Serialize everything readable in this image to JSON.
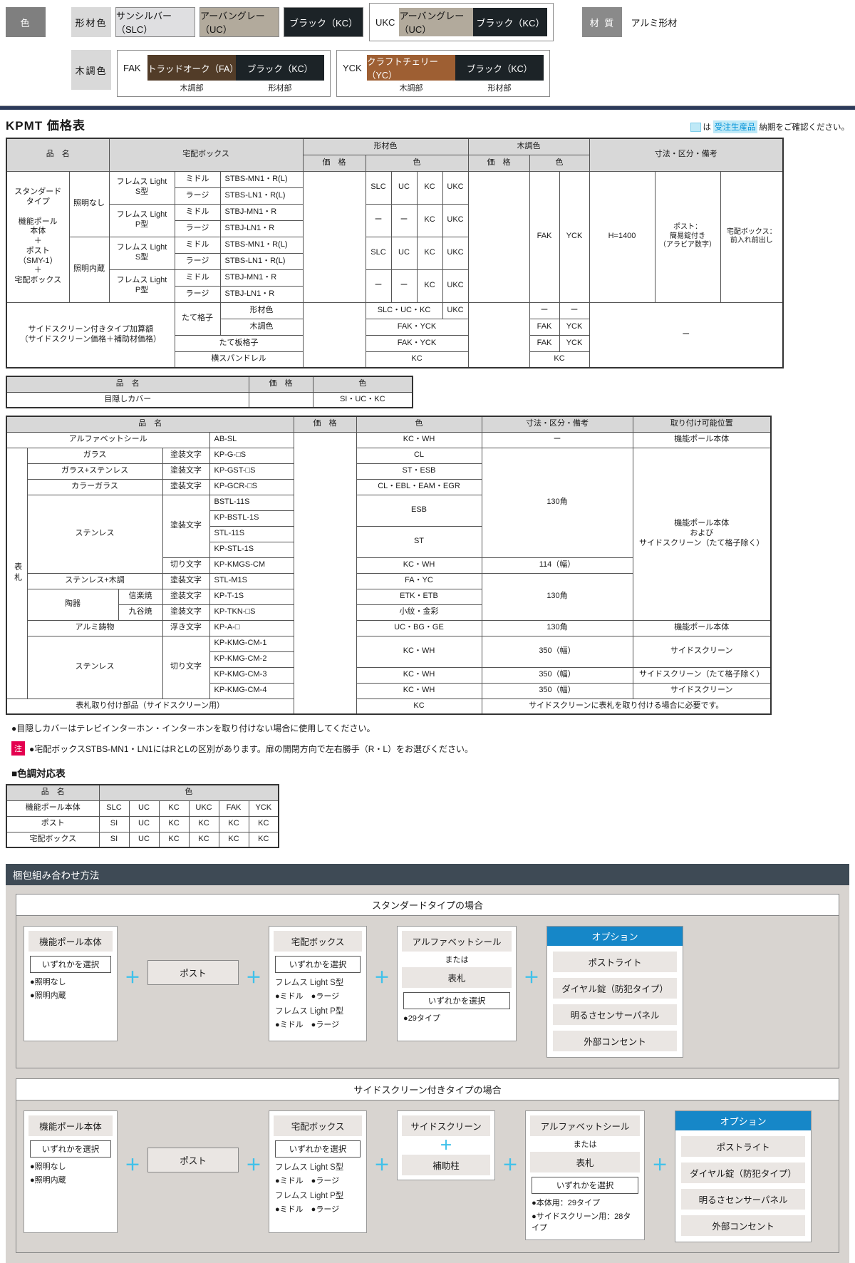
{
  "page": {
    "title": "KPMT 価格表"
  },
  "legend": {
    "prefix": "は",
    "badge": "受注生産品",
    "suffix": "納期をご確認ください。"
  },
  "colors": {
    "silver": "#dfdfe1",
    "urban": "#b2aa9c",
    "black": "#1c2327",
    "oak": "#523c28",
    "cherry": "#9e5f33",
    "accent_blue": "#1687c8",
    "plus_cyan": "#3fc1ea",
    "legend_bg": "#bfe9f7",
    "legend_text": "#0092d8",
    "note_badge": "#e4004f",
    "navy_rule": "#2c3a59",
    "header_gray": "#d8d8d8",
    "panel_bg": "#d8d4d0",
    "bar_bg": "#eae6e3"
  },
  "palette": {
    "colorLabel": "色",
    "profileLabel": "形材色",
    "swatches": [
      {
        "name": "サンシルバー（SLC）"
      },
      {
        "name": "アーバングレー（UC）"
      },
      {
        "name": "ブラック（KC）"
      }
    ],
    "ukc": {
      "code": "UKC",
      "left": "アーバングレー（UC）",
      "right": "ブラック（KC）"
    },
    "materialLabel": "材 質",
    "material": "アルミ形材",
    "woodLabel": "木調色",
    "fak": {
      "code": "FAK",
      "left": "トラッドオーク（FA）",
      "right": "ブラック（KC）",
      "leftCap": "木調部",
      "rightCap": "形材部"
    },
    "yck": {
      "code": "YCK",
      "left": "クラフトチェリー（YC）",
      "right": "ブラック（KC）",
      "leftCap": "木調部",
      "rightCap": "形材部"
    }
  },
  "tables": {
    "main": {
      "cols": [
        88,
        56,
        92,
        64,
        116,
        88,
        36,
        36,
        36,
        36,
        86,
        42,
        42,
        92,
        92,
        88
      ],
      "rows": [
        [
          {
            "t": "品　名",
            "cs": 2,
            "rs": 2,
            "c": "h"
          },
          {
            "t": "宅配ボックス",
            "cs": 3,
            "rs": 2,
            "c": "h"
          },
          {
            "t": "形材色",
            "cs": 5,
            "c": "h"
          },
          {
            "t": "木調色",
            "cs": 3,
            "c": "h"
          },
          {
            "t": "寸法・区分・備考",
            "cs": 3,
            "rs": 2,
            "c": "h"
          }
        ],
        [
          {
            "t": "価　格",
            "c": "h"
          },
          {
            "t": "色",
            "cs": 4,
            "c": "h"
          },
          {
            "t": "価　格",
            "c": "h"
          },
          {
            "t": "色",
            "cs": 2,
            "c": "h"
          }
        ],
        [
          {
            "t": "スタンダード\nタイプ\n\n機能ポール\n本体\n＋\nポスト\n（SMY-1）\n＋\n宅配ボックス",
            "rs": 8,
            "c": "pre"
          },
          {
            "t": "照明なし",
            "rs": 4
          },
          {
            "t": "フレムス Light\nS型",
            "rs": 2,
            "c": "pre"
          },
          {
            "t": "ミドル"
          },
          {
            "t": "STBS-MN1・R(L)",
            "c": "l"
          },
          {
            "t": "",
            "rs": 8
          },
          {
            "t": "SLC",
            "rs": 2
          },
          {
            "t": "UC",
            "rs": 2
          },
          {
            "t": "KC",
            "rs": 2
          },
          {
            "t": "UKC",
            "rs": 2
          },
          {
            "t": "",
            "rs": 8
          },
          {
            "t": "FAK",
            "rs": 8
          },
          {
            "t": "YCK",
            "rs": 8
          },
          {
            "t": "H=1400",
            "rs": 8
          },
          {
            "t": "ポスト：\n簡易錠付き\n（アラビア数字）",
            "rs": 8,
            "c": "pre s"
          },
          {
            "t": "宅配ボックス：\n前入れ前出し",
            "rs": 8,
            "c": "pre s"
          }
        ],
        [
          {
            "t": "ラージ"
          },
          {
            "t": "STBS-LN1・R(L)",
            "c": "l"
          }
        ],
        [
          {
            "t": "フレムス Light\nP型",
            "rs": 2,
            "c": "pre"
          },
          {
            "t": "ミドル"
          },
          {
            "t": "STBJ-MN1・R",
            "c": "l"
          },
          {
            "t": "ー",
            "rs": 2
          },
          {
            "t": "ー",
            "rs": 2
          },
          {
            "t": "KC",
            "rs": 2
          },
          {
            "t": "UKC",
            "rs": 2
          }
        ],
        [
          {
            "t": "ラージ"
          },
          {
            "t": "STBJ-LN1・R",
            "c": "l"
          }
        ],
        [
          {
            "t": "照明内蔵",
            "rs": 4
          },
          {
            "t": "フレムス Light\nS型",
            "rs": 2,
            "c": "pre"
          },
          {
            "t": "ミドル"
          },
          {
            "t": "STBS-MN1・R(L)",
            "c": "l"
          },
          {
            "t": "SLC",
            "rs": 2
          },
          {
            "t": "UC",
            "rs": 2
          },
          {
            "t": "KC",
            "rs": 2
          },
          {
            "t": "UKC",
            "rs": 2
          }
        ],
        [
          {
            "t": "ラージ"
          },
          {
            "t": "STBS-LN1・R(L)",
            "c": "l"
          }
        ],
        [
          {
            "t": "フレムス Light\nP型",
            "rs": 2,
            "c": "pre"
          },
          {
            "t": "ミドル"
          },
          {
            "t": "STBJ-MN1・R",
            "c": "l"
          },
          {
            "t": "ー",
            "rs": 2
          },
          {
            "t": "ー",
            "rs": 2
          },
          {
            "t": "KC",
            "rs": 2
          },
          {
            "t": "UKC",
            "rs": 2
          }
        ],
        [
          {
            "t": "ラージ"
          },
          {
            "t": "STBJ-LN1・R",
            "c": "l"
          }
        ],
        [
          {
            "t": "サイドスクリーン付きタイプ加算額\n（サイドスクリーン価格＋補助材価格）",
            "cs": 3,
            "rs": 4,
            "c": "pre"
          },
          {
            "t": "たて格子",
            "rs": 2
          },
          {
            "t": "形材色"
          },
          {
            "t": "",
            "rs": 4
          },
          {
            "t": "SLC・UC・KC",
            "cs": 3
          },
          {
            "t": "UKC"
          },
          {
            "t": "",
            "rs": 4
          },
          {
            "t": "ー"
          },
          {
            "t": "ー"
          },
          {
            "t": "ー",
            "cs": 3,
            "rs": 4
          }
        ],
        [
          {
            "t": "木調色"
          },
          {
            "t": "FAK・YCK",
            "cs": 4
          },
          {
            "t": "FAK"
          },
          {
            "t": "YCK"
          }
        ],
        [
          {
            "t": "たて板格子",
            "cs": 2
          },
          {
            "t": "FAK・YCK",
            "cs": 4
          },
          {
            "t": "FAK"
          },
          {
            "t": "YCK"
          }
        ],
        [
          {
            "t": "横スパンドレル",
            "cs": 2
          },
          {
            "t": "KC",
            "cs": 4
          },
          {
            "t": "KC",
            "cs": 2
          }
        ]
      ]
    },
    "cover": {
      "cols": [
        340,
        90,
        140
      ],
      "rows": [
        [
          {
            "t": "品　名",
            "c": "h"
          },
          {
            "t": "価　格",
            "c": "h"
          },
          {
            "t": "色",
            "c": "h"
          }
        ],
        [
          {
            "t": "目隠しカバー"
          },
          {
            "t": ""
          },
          {
            "t": "SI・UC・KC"
          }
        ]
      ]
    },
    "nameplate": {
      "cols": [
        20,
        128,
        62,
        66,
        118,
        88,
        176,
        212,
        194
      ],
      "rows": [
        [
          {
            "t": "品　名",
            "cs": 5,
            "c": "h"
          },
          {
            "t": "価　格",
            "c": "h"
          },
          {
            "t": "色",
            "c": "h"
          },
          {
            "t": "寸法・区分・備考",
            "c": "h"
          },
          {
            "t": "取り付け可能位置",
            "c": "h"
          }
        ],
        [
          {
            "t": "アルファベットシール",
            "cs": 4
          },
          {
            "t": "AB-SL",
            "c": "l"
          },
          {
            "t": "",
            "rs": 18
          },
          {
            "t": "KC・WH"
          },
          {
            "t": "ー"
          },
          {
            "t": "機能ポール本体"
          }
        ],
        [
          {
            "t": "表札",
            "rs": 16,
            "c": "v"
          },
          {
            "t": "ガラス",
            "cs": 2
          },
          {
            "t": "塗装文字"
          },
          {
            "t": "KP-G-□S",
            "c": "l"
          },
          {
            "t": "CL"
          },
          {
            "t": "130角",
            "rs": 7
          },
          {
            "t": "機能ポール本体\nおよび\nサイドスクリーン（たて格子除く）",
            "rs": 11,
            "c": "pre"
          }
        ],
        [
          {
            "t": "ガラス+ステンレス",
            "cs": 2
          },
          {
            "t": "塗装文字"
          },
          {
            "t": "KP-GST-□S",
            "c": "l"
          },
          {
            "t": "ST・ESB"
          }
        ],
        [
          {
            "t": "カラーガラス",
            "cs": 2
          },
          {
            "t": "塗装文字"
          },
          {
            "t": "KP-GCR-□S",
            "c": "l"
          },
          {
            "t": "CL・EBL・EAM・EGR"
          }
        ],
        [
          {
            "t": "ステンレス",
            "cs": 2,
            "rs": 5
          },
          {
            "t": "塗装文字",
            "rs": 4
          },
          {
            "t": "BSTL-11S",
            "c": "l"
          },
          {
            "t": "ESB",
            "rs": 2
          }
        ],
        [
          {
            "t": "KP-BSTL-1S",
            "c": "l"
          }
        ],
        [
          {
            "t": "STL-11S",
            "c": "l"
          },
          {
            "t": "ST",
            "rs": 2
          }
        ],
        [
          {
            "t": "KP-STL-1S",
            "c": "l"
          }
        ],
        [
          {
            "t": "切り文字"
          },
          {
            "t": "KP-KMGS-CM",
            "c": "l"
          },
          {
            "t": "KC・WH"
          },
          {
            "t": "114（幅）"
          }
        ],
        [
          {
            "t": "ステンレス+木調",
            "cs": 2
          },
          {
            "t": "塗装文字"
          },
          {
            "t": "STL-M1S",
            "c": "l"
          },
          {
            "t": "FA・YC"
          },
          {
            "t": "130角",
            "rs": 3
          }
        ],
        [
          {
            "t": "陶器",
            "rs": 2
          },
          {
            "t": "信楽焼"
          },
          {
            "t": "塗装文字"
          },
          {
            "t": "KP-T-1S",
            "c": "l"
          },
          {
            "t": "ETK・ETB"
          }
        ],
        [
          {
            "t": "九谷焼"
          },
          {
            "t": "塗装文字"
          },
          {
            "t": "KP-TKN-□S",
            "c": "l"
          },
          {
            "t": "小紋・金彩"
          }
        ],
        [
          {
            "t": "アルミ鋳物",
            "cs": 2
          },
          {
            "t": "浮き文字"
          },
          {
            "t": "KP-A-□",
            "c": "l"
          },
          {
            "t": "UC・BG・GE"
          },
          {
            "t": "130角"
          },
          {
            "t": "機能ポール本体"
          }
        ],
        [
          {
            "t": "ステンレス",
            "cs": 2,
            "rs": 4
          },
          {
            "t": "切り文字",
            "rs": 4
          },
          {
            "t": "KP-KMG-CM-1",
            "c": "l"
          },
          {
            "t": "KC・WH",
            "rs": 2
          },
          {
            "t": "350（幅）",
            "rs": 2
          },
          {
            "t": "サイドスクリーン",
            "rs": 2
          }
        ],
        [
          {
            "t": "KP-KMG-CM-2",
            "c": "l"
          }
        ],
        [
          {
            "t": "KP-KMG-CM-3",
            "c": "l"
          },
          {
            "t": "KC・WH"
          },
          {
            "t": "350（幅）"
          },
          {
            "t": "サイドスクリーン（たて格子除く）"
          }
        ],
        [
          {
            "t": "KP-KMG-CM-4",
            "c": "l"
          },
          {
            "t": "KC・WH"
          },
          {
            "t": "350（幅）"
          },
          {
            "t": "サイドスクリーン"
          }
        ],
        [
          {
            "t": "表札取り付け部品（サイドスクリーン用）",
            "cs": 5
          },
          {
            "t": "KC"
          },
          {
            "t": "サイドスクリーンに表札を取り付ける場合に必要です。",
            "cs": 2
          }
        ]
      ]
    },
    "colorMap": {
      "cols": [
        130,
        42,
        42,
        42,
        42,
        42,
        42
      ],
      "rows": [
        [
          {
            "t": "品　名",
            "c": "h"
          },
          {
            "t": "色",
            "cs": 6,
            "c": "h"
          }
        ],
        [
          {
            "t": "機能ポール本体"
          },
          {
            "t": "SLC"
          },
          {
            "t": "UC"
          },
          {
            "t": "KC"
          },
          {
            "t": "UKC"
          },
          {
            "t": "FAK"
          },
          {
            "t": "YCK"
          }
        ],
        [
          {
            "t": "ポスト"
          },
          {
            "t": "SI"
          },
          {
            "t": "UC"
          },
          {
            "t": "KC"
          },
          {
            "t": "KC"
          },
          {
            "t": "KC"
          },
          {
            "t": "KC"
          }
        ],
        [
          {
            "t": "宅配ボックス"
          },
          {
            "t": "SI"
          },
          {
            "t": "UC"
          },
          {
            "t": "KC"
          },
          {
            "t": "KC"
          },
          {
            "t": "KC"
          },
          {
            "t": "KC"
          }
        ]
      ]
    }
  },
  "notes": {
    "note1": "●目隠しカバーはテレビインターホン・インターホンを取り付けない場合に使用してください。",
    "badge": "注",
    "note2": "●宅配ボックスSTBS-MN1・LN1にはRとLの区別があります。扉の開閉方向で左右勝手（R・L）をお選びください。"
  },
  "colorMapTitle": "■色調対応表",
  "packing": {
    "header": "梱包組み合わせ方法",
    "plus": "＋",
    "sections": [
      {
        "title": "スタンダードタイプの場合",
        "pole": {
          "label": "機能ポール本体",
          "select": "いずれかを選択",
          "bullets": [
            "●照明なし",
            "●照明内蔵"
          ]
        },
        "post": "ポスト",
        "delivery": {
          "label": "宅配ボックス",
          "select": "いずれかを選択",
          "group1": "フレムス Light S型",
          "opts1": "●ミドル　●ラージ",
          "group2": "フレムス Light P型",
          "opts2": "●ミドル　●ラージ"
        },
        "nameplate": {
          "label": "アルファベットシール",
          "or": "または",
          "label2": "表札",
          "select": "いずれかを選択",
          "bullets": [
            "●29タイプ"
          ]
        },
        "option": {
          "label": "オプション",
          "items": [
            "ポストライト",
            "ダイヤル錠（防犯タイプ）",
            "明るさセンサーパネル",
            "外部コンセント"
          ]
        }
      },
      {
        "title": "サイドスクリーン付きタイプの場合",
        "pole": {
          "label": "機能ポール本体",
          "select": "いずれかを選択",
          "bullets": [
            "●照明なし",
            "●照明内蔵"
          ]
        },
        "post": "ポスト",
        "delivery": {
          "label": "宅配ボックス",
          "select": "いずれかを選択",
          "group1": "フレムス Light S型",
          "opts1": "●ミドル　●ラージ",
          "group2": "フレムス Light P型",
          "opts2": "●ミドル　●ラージ"
        },
        "screen": {
          "label": "サイドスクリーン",
          "plus": "＋",
          "label2": "補助柱"
        },
        "nameplate": {
          "label": "アルファベットシール",
          "or": "または",
          "label2": "表札",
          "select": "いずれかを選択",
          "bullets": [
            "●本体用：29タイプ",
            "●サイドスクリーン用：28タイプ"
          ]
        },
        "option": {
          "label": "オプション",
          "items": [
            "ポストライト",
            "ダイヤル錠（防犯タイプ）",
            "明るさセンサーパネル",
            "外部コンセント"
          ]
        }
      }
    ]
  }
}
